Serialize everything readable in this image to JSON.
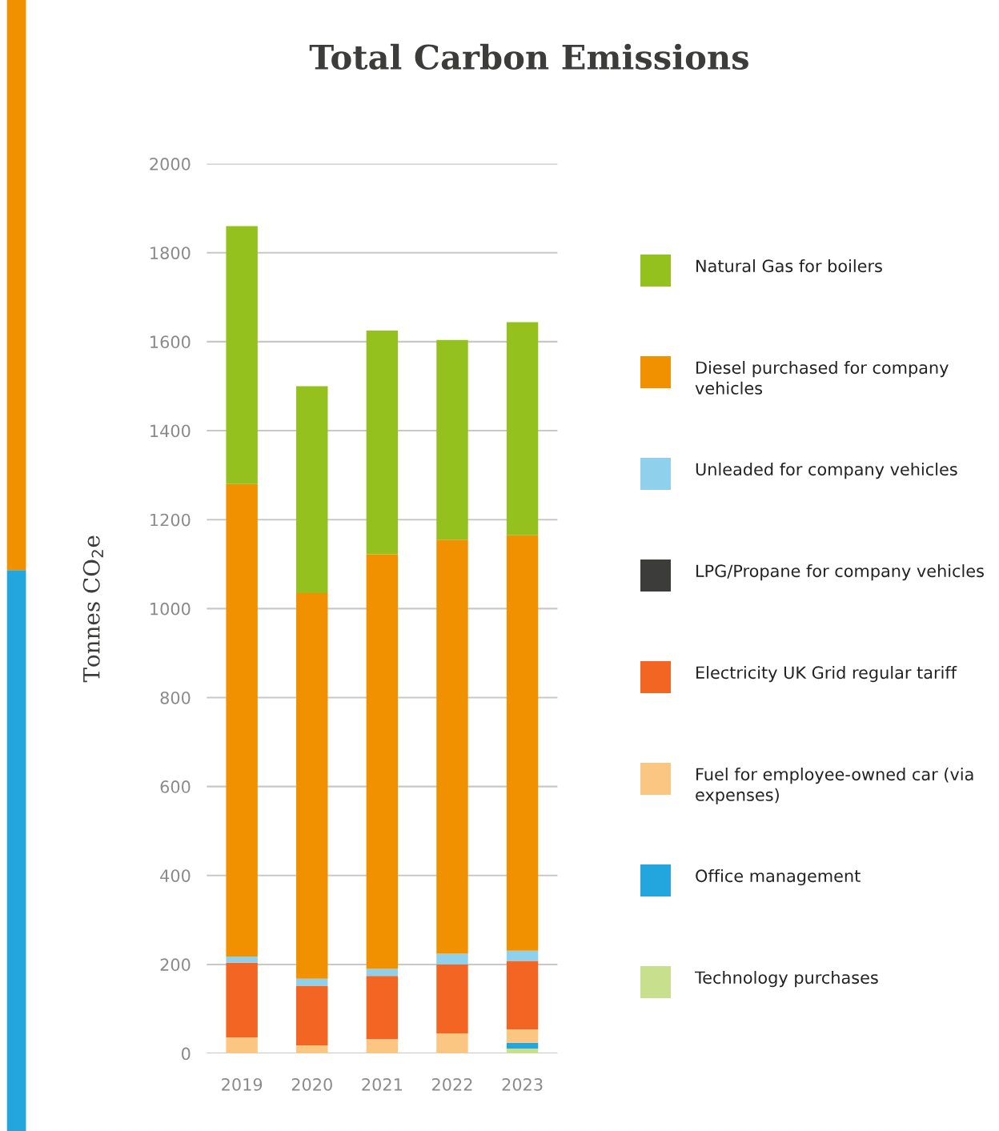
{
  "chart_data": {
    "type": "bar",
    "title": "Total Carbon Emissions",
    "ylabel": "Tonnes CO$_{2}$e",
    "categories": [
      "2019",
      "2020",
      "2021",
      "2022",
      "2023"
    ],
    "stacked": true,
    "ylim": [
      0,
      2000
    ],
    "yticks": [
      0,
      200,
      400,
      600,
      800,
      1000,
      1200,
      1400,
      1600,
      1800,
      2000
    ],
    "grid": "y",
    "legend": "right",
    "series": [
      {
        "name": "Technology purchases",
        "color": "#c8df8e",
        "values": [
          0,
          0,
          0,
          0,
          11
        ]
      },
      {
        "name": "Office management",
        "color": "#22a6dd",
        "values": [
          0,
          0,
          0,
          0,
          13
        ]
      },
      {
        "name": "Fuel for employee-owned car (via expenses)",
        "color": "#fbc682",
        "values": [
          36,
          18,
          32,
          45,
          30
        ]
      },
      {
        "name": "Electricity UK Grid regular tariff",
        "color": "#f26522",
        "values": [
          168,
          134,
          142,
          155,
          154
        ]
      },
      {
        "name": "LPG/Propane for company vehicles",
        "color": "#3c3c3b",
        "values": [
          0,
          0,
          0,
          0,
          0
        ]
      },
      {
        "name": "Unleaded for company vehicles",
        "color": "#8fd0ec",
        "values": [
          14,
          16,
          16,
          24,
          23
        ]
      },
      {
        "name": "Diesel purchased for company vehicles",
        "color": "#f29100",
        "values": [
          1062,
          867,
          932,
          931,
          934
        ]
      },
      {
        "name": "Natural Gas for boilers",
        "color": "#95c11f",
        "values": [
          580,
          465,
          503,
          449,
          479
        ]
      }
    ]
  }
}
